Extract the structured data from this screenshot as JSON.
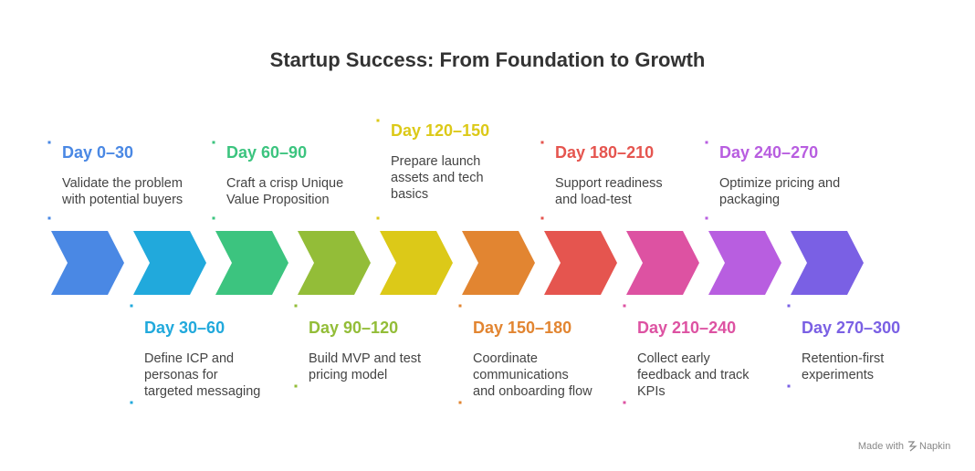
{
  "title": "Startup Success: From Foundation to Growth",
  "steps": [
    {
      "label": "Day 0–30",
      "color": "#4a88e4",
      "description": [
        "Validate the problem",
        "with potential buyers"
      ]
    },
    {
      "label": "Day 30–60",
      "color": "#21a9dc",
      "description": [
        "Define ICP and",
        "personas for",
        "targeted messaging"
      ]
    },
    {
      "label": "Day 60–90",
      "color": "#3cc47f",
      "description": [
        "Craft a crisp Unique",
        "Value Proposition"
      ]
    },
    {
      "label": "Day 90–120",
      "color": "#93bd38",
      "description": [
        "Build MVP and test",
        "pricing model"
      ]
    },
    {
      "label": "Day 120–150",
      "color": "#dcc918",
      "description": [
        "Prepare launch",
        "assets and tech",
        "basics"
      ]
    },
    {
      "label": "Day 150–180",
      "color": "#e28531",
      "description": [
        "Coordinate",
        "communications",
        "and onboarding flow"
      ]
    },
    {
      "label": "Day 180–210",
      "color": "#e5554f",
      "description": [
        "Support readiness",
        "and load-test"
      ]
    },
    {
      "label": "Day 210–240",
      "color": "#dd52a2",
      "description": [
        "Collect early",
        "feedback and track",
        "KPIs"
      ]
    },
    {
      "label": "Day 240–270",
      "color": "#b85ee0",
      "description": [
        "Optimize pricing and",
        "packaging"
      ]
    },
    {
      "label": "Day 270–300",
      "color": "#7a60e4",
      "description": [
        "Retention-first",
        "experiments"
      ]
    }
  ],
  "footer": {
    "prefix": "Made with",
    "brand": "Napkin"
  }
}
